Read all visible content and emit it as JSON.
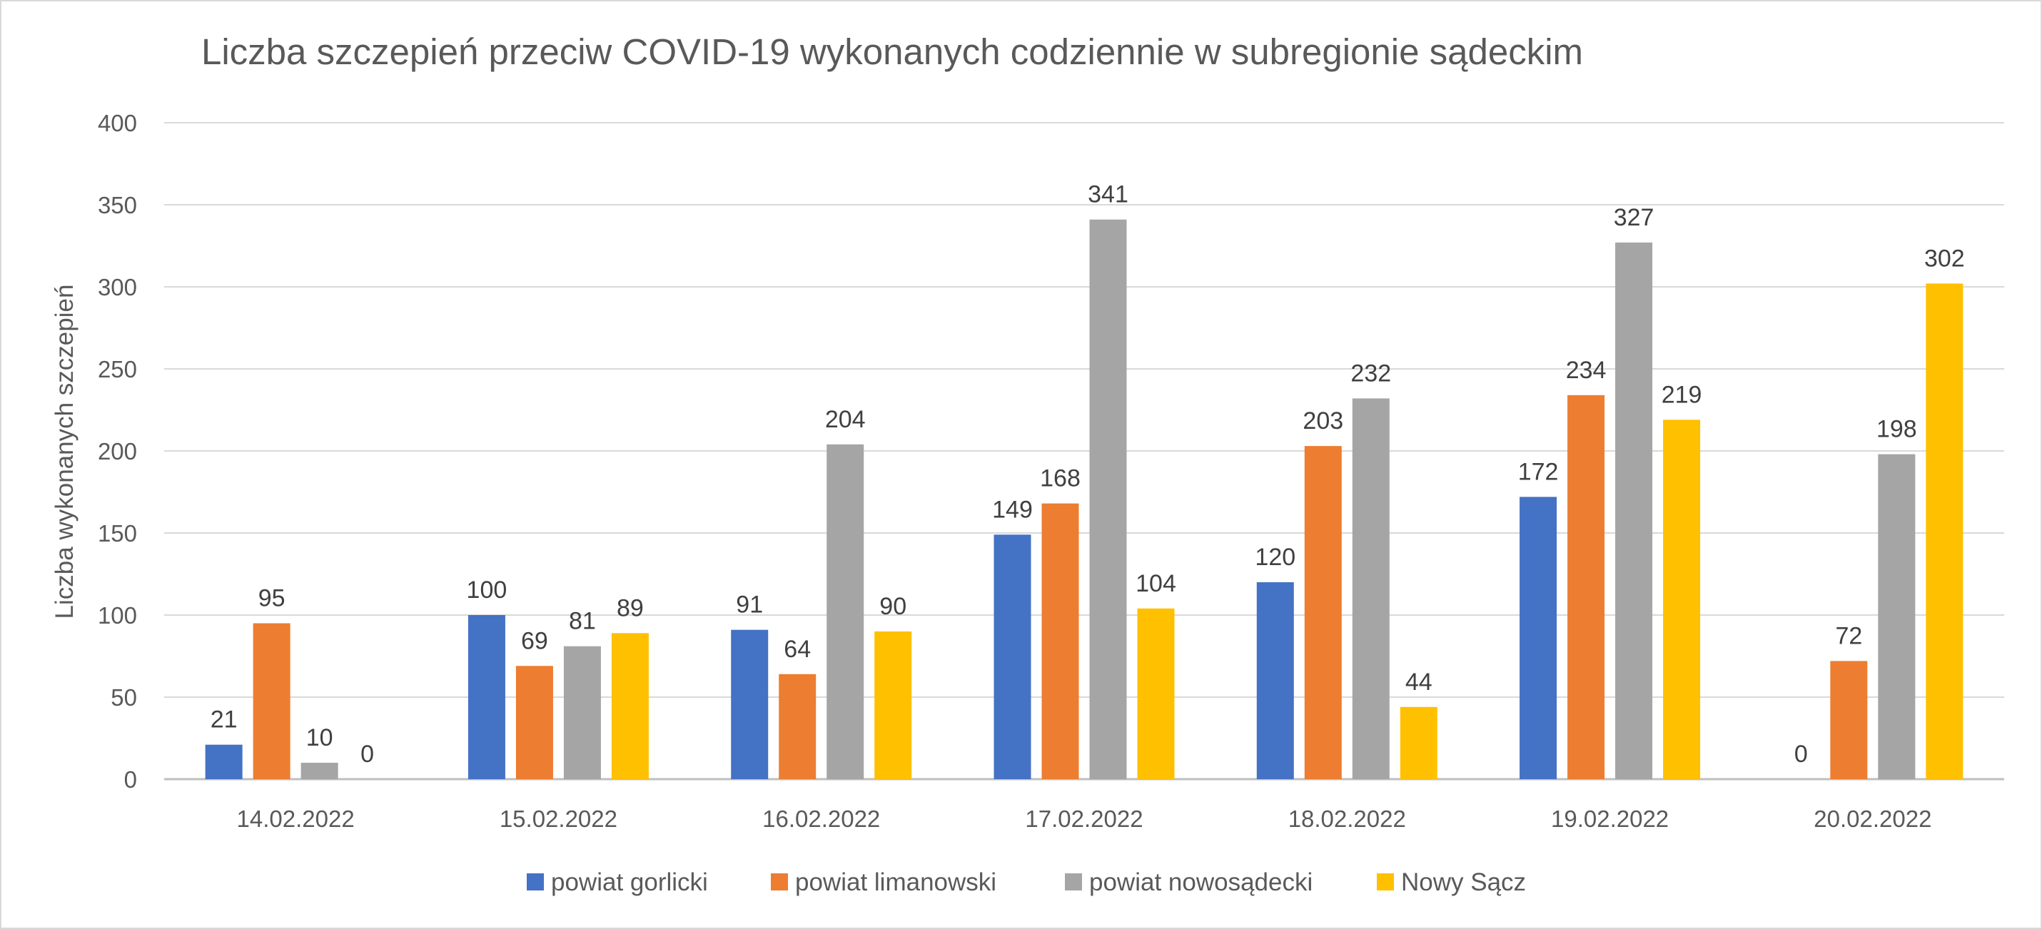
{
  "chart_data": {
    "type": "bar",
    "title": "Liczba szczepień przeciw COVID-19 wykonanych codziennie w subregionie sądeckim",
    "xlabel": "",
    "ylabel": "Liczba wykonanych szczepień",
    "ylim": [
      0,
      400
    ],
    "yticks": [
      "0",
      "50",
      "100",
      "150",
      "200",
      "250",
      "300",
      "350",
      "400"
    ],
    "grid": true,
    "legend_position": "bottom",
    "categories": [
      "14.02.2022",
      "15.02.2022",
      "16.02.2022",
      "17.02.2022",
      "18.02.2022",
      "19.02.2022",
      "20.02.2022"
    ],
    "series": [
      {
        "name": "powiat gorlicki",
        "color": "#4472C4",
        "values": [
          21,
          100,
          91,
          149,
          120,
          172,
          0
        ]
      },
      {
        "name": "powiat limanowski",
        "color": "#ED7D31",
        "values": [
          95,
          69,
          64,
          168,
          203,
          234,
          72
        ]
      },
      {
        "name": "powiat nowosądecki",
        "color": "#A5A5A5",
        "values": [
          10,
          81,
          204,
          341,
          232,
          327,
          198
        ]
      },
      {
        "name": "Nowy Sącz",
        "color": "#FFC000",
        "values": [
          0,
          89,
          90,
          104,
          44,
          219,
          302
        ]
      }
    ]
  }
}
